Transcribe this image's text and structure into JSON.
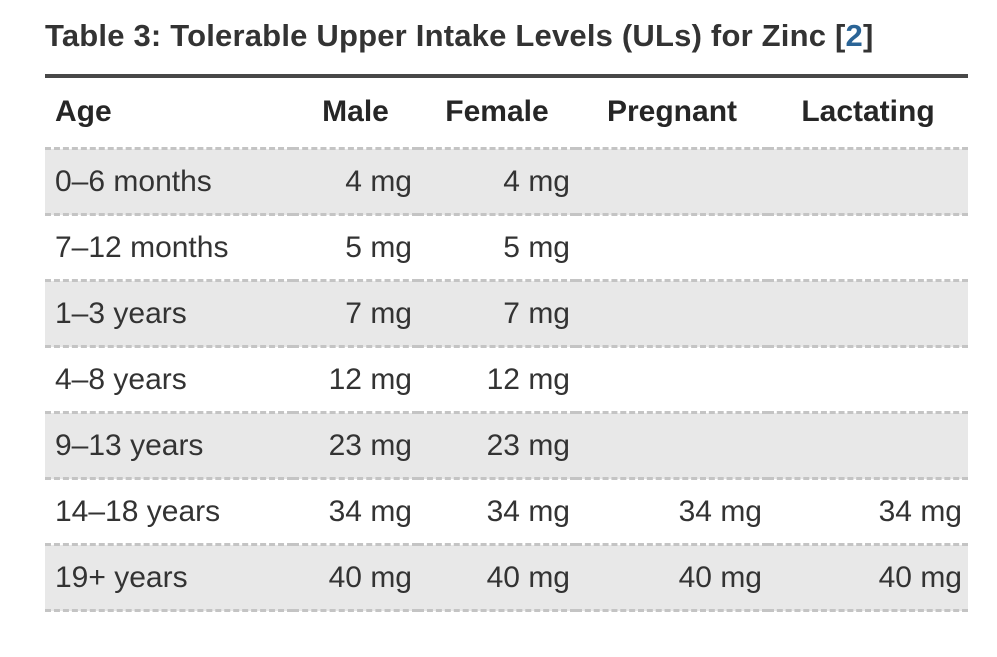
{
  "title": {
    "text": "Table 3: Tolerable Upper Intake Levels (ULs) for Zinc ",
    "ref_open": "[",
    "ref_label": "2",
    "ref_close": "]"
  },
  "colors": {
    "link": "#2a6496",
    "stripe": "#e8e8e8",
    "dash_border": "#c4c4c4",
    "title_rule": "#484848",
    "text": "#333333"
  },
  "table": {
    "columns": [
      "Age",
      "Male",
      "Female",
      "Pregnant",
      "Lactating"
    ],
    "rows": [
      {
        "age": "0–6 months",
        "male": "4 mg",
        "female": "4 mg",
        "pregnant": "",
        "lactating": ""
      },
      {
        "age": "7–12 months",
        "male": "5 mg",
        "female": "5 mg",
        "pregnant": "",
        "lactating": ""
      },
      {
        "age": "1–3 years",
        "male": "7 mg",
        "female": "7 mg",
        "pregnant": "",
        "lactating": ""
      },
      {
        "age": "4–8 years",
        "male": "12 mg",
        "female": "12 mg",
        "pregnant": "",
        "lactating": ""
      },
      {
        "age": "9–13 years",
        "male": "23 mg",
        "female": "23 mg",
        "pregnant": "",
        "lactating": ""
      },
      {
        "age": "14–18 years",
        "male": "34 mg",
        "female": "34 mg",
        "pregnant": "34 mg",
        "lactating": "34 mg"
      },
      {
        "age": "19+ years",
        "male": "40 mg",
        "female": "40 mg",
        "pregnant": "40 mg",
        "lactating": "40 mg"
      }
    ]
  }
}
